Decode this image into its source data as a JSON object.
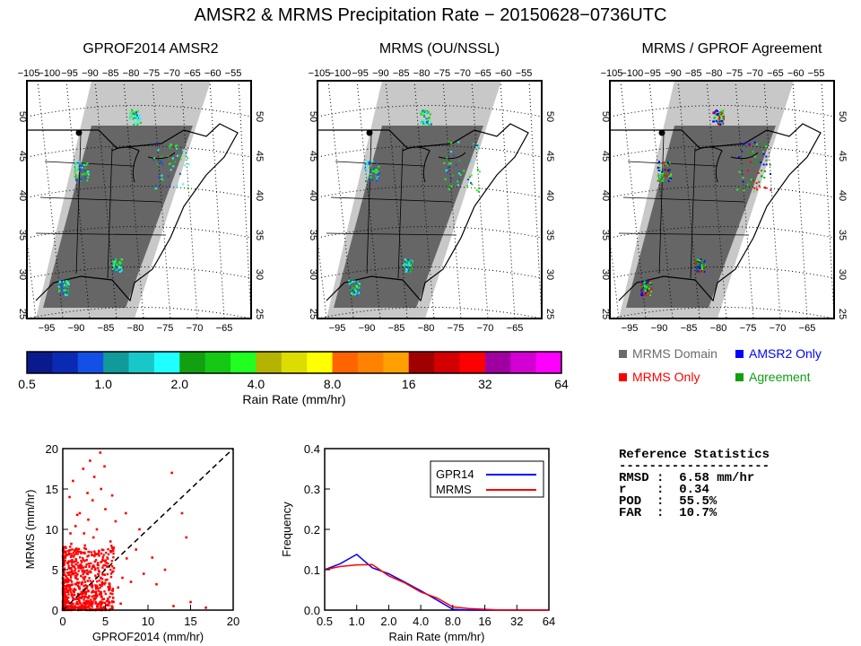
{
  "page_title": "AMSR2 & MRMS Precipitation Rate − 20150628−0736UTC",
  "maps": [
    {
      "title": "GPROF2014 AMSR2"
    },
    {
      "title": "MRMS (OU/NSSL)"
    },
    {
      "title": "MRMS / GPROF Agreement"
    }
  ],
  "map_axes": {
    "top_lon_labels": [
      "−105",
      "−100",
      "−95",
      "−90",
      "−85",
      "−80",
      "−75",
      "−70",
      "−65",
      "−60",
      "−55"
    ],
    "bottom_lon_labels": [
      "−95",
      "−90",
      "−85",
      "−80",
      "−75",
      "−70",
      "−65"
    ],
    "lat_labels": [
      "50",
      "45",
      "40",
      "35",
      "30",
      "25"
    ]
  },
  "colorbar": {
    "colors": [
      "#0a1a8c",
      "#0a2ab4",
      "#1450e6",
      "#109a9a",
      "#18c8c8",
      "#20ffff",
      "#10a010",
      "#14c814",
      "#20ff20",
      "#b4b400",
      "#dcdc00",
      "#ffff00",
      "#ff6400",
      "#ff8200",
      "#ffa000",
      "#a00000",
      "#d20000",
      "#ff0000",
      "#a000a0",
      "#d200d2",
      "#ff00ff"
    ],
    "tick_labels": [
      "0.5",
      "1.0",
      "2.0",
      "4.0",
      "8.0",
      "16",
      "32",
      "64"
    ],
    "label": "Rain Rate (mm/hr)"
  },
  "agreement_legend": [
    {
      "label": "MRMS Domain",
      "color": "#6a6a6a"
    },
    {
      "label": "AMSR2 Only",
      "color": "#0000ff"
    },
    {
      "label": "MRMS Only",
      "color": "#ff0000"
    },
    {
      "label": "Agreement",
      "color": "#10a010"
    }
  ],
  "chart_data": [
    {
      "type": "scatter",
      "xlabel": "GPROF2014 (mm/hr)",
      "ylabel": "MRMS (mm/hr)",
      "xlim": [
        0,
        20
      ],
      "ylim": [
        0,
        20
      ],
      "xticks": [
        "0",
        "5",
        "10",
        "15",
        "20"
      ],
      "yticks": [
        "0",
        "5",
        "10",
        "15",
        "20"
      ],
      "one_to_one_line": true,
      "color": "#ff0000",
      "points": [
        [
          0.3,
          0.2
        ],
        [
          0.5,
          1.2
        ],
        [
          0.8,
          2.5
        ],
        [
          1.0,
          3.1
        ],
        [
          1.2,
          0.8
        ],
        [
          1.5,
          4.2
        ],
        [
          1.8,
          2.0
        ],
        [
          2.0,
          5.5
        ],
        [
          2.2,
          1.5
        ],
        [
          2.5,
          3.8
        ],
        [
          2.8,
          6.2
        ],
        [
          3.0,
          2.4
        ],
        [
          3.2,
          4.8
        ],
        [
          3.5,
          1.0
        ],
        [
          3.8,
          5.0
        ],
        [
          4.0,
          3.0
        ],
        [
          4.2,
          7.0
        ],
        [
          4.5,
          2.2
        ],
        [
          4.8,
          4.4
        ],
        [
          5.0,
          6.0
        ],
        [
          5.5,
          3.2
        ],
        [
          6.0,
          5.2
        ],
        [
          6.5,
          2.8
        ],
        [
          7.0,
          4.0
        ],
        [
          7.5,
          6.4
        ],
        [
          8.0,
          3.5
        ],
        [
          1.0,
          8.2
        ],
        [
          1.5,
          10.4
        ],
        [
          2.0,
          12.0
        ],
        [
          2.5,
          9.5
        ],
        [
          3.0,
          11.2
        ],
        [
          3.5,
          13.6
        ],
        [
          4.0,
          10.0
        ],
        [
          4.5,
          15.0
        ],
        [
          5.0,
          12.5
        ],
        [
          1.2,
          16.0
        ],
        [
          2.4,
          17.5
        ],
        [
          3.2,
          18.5
        ],
        [
          4.4,
          19.5
        ],
        [
          0.8,
          14.0
        ],
        [
          1.6,
          7.0
        ],
        [
          2.6,
          8.0
        ],
        [
          3.6,
          9.0
        ],
        [
          5.6,
          8.5
        ],
        [
          6.2,
          11.0
        ],
        [
          7.4,
          12.0
        ],
        [
          8.6,
          7.5
        ],
        [
          9.5,
          4.5
        ],
        [
          10.5,
          6.5
        ],
        [
          12.0,
          5.0
        ],
        [
          12.8,
          17.0
        ],
        [
          13.0,
          0.5
        ],
        [
          14.0,
          12.0
        ],
        [
          15.0,
          1.0
        ],
        [
          16.8,
          0.3
        ],
        [
          14.5,
          9.0
        ],
        [
          11.0,
          3.2
        ],
        [
          9.0,
          10.0
        ],
        [
          0.4,
          3.6
        ],
        [
          0.6,
          5.8
        ],
        [
          1.4,
          6.0
        ],
        [
          1.9,
          3.4
        ],
        [
          2.3,
          0.4
        ],
        [
          2.7,
          2.0
        ],
        [
          3.3,
          0.6
        ],
        [
          3.9,
          1.8
        ],
        [
          4.6,
          0.9
        ],
        [
          5.3,
          1.4
        ],
        [
          6.8,
          0.8
        ],
        [
          0.2,
          6.5
        ],
        [
          1.1,
          4.8
        ],
        [
          2.1,
          7.2
        ],
        [
          3.4,
          6.8
        ],
        [
          4.1,
          5.6
        ],
        [
          0.9,
          9.5
        ],
        [
          1.7,
          11.8
        ],
        [
          2.9,
          14.5
        ],
        [
          3.7,
          16.5
        ],
        [
          4.9,
          17.8
        ],
        [
          5.8,
          14.2
        ]
      ]
    },
    {
      "type": "line",
      "xlabel": "Rain Rate (mm/hr)",
      "ylabel": "Frequency",
      "x_scale": "log2",
      "xticks": [
        "0.5",
        "1.0",
        "2.0",
        "4.0",
        "8.0",
        "16",
        "32",
        "64"
      ],
      "x": [
        0.5,
        0.7,
        1.0,
        1.4,
        2.0,
        2.8,
        4.0,
        5.7,
        8.0,
        11.3,
        16,
        22.6,
        32,
        45,
        64
      ],
      "ylim": [
        0,
        0.4
      ],
      "yticks": [
        "0.0",
        "0.1",
        "0.2",
        "0.3",
        "0.4"
      ],
      "series": [
        {
          "name": "GPR14",
          "color": "#0000ff",
          "values": [
            0.1,
            0.115,
            0.138,
            0.105,
            0.09,
            0.07,
            0.048,
            0.025,
            0.002,
            0.0,
            0.0,
            0.0,
            0.0,
            0.0,
            0.0
          ]
        },
        {
          "name": "MRMS",
          "color": "#ff0000",
          "values": [
            0.1,
            0.108,
            0.112,
            0.113,
            0.085,
            0.068,
            0.045,
            0.03,
            0.008,
            0.004,
            0.002,
            0.0,
            0.0,
            0.0,
            0.0
          ]
        }
      ]
    }
  ],
  "stats": {
    "title": "Reference Statistics",
    "divider": "--------------------",
    "rows": [
      {
        "label": "RMSD",
        "value": "6.58 mm/hr"
      },
      {
        "label": "r",
        "value": "0.34"
      },
      {
        "label": "POD",
        "value": "55.5%"
      },
      {
        "label": "FAR",
        "value": "10.7%"
      }
    ]
  }
}
